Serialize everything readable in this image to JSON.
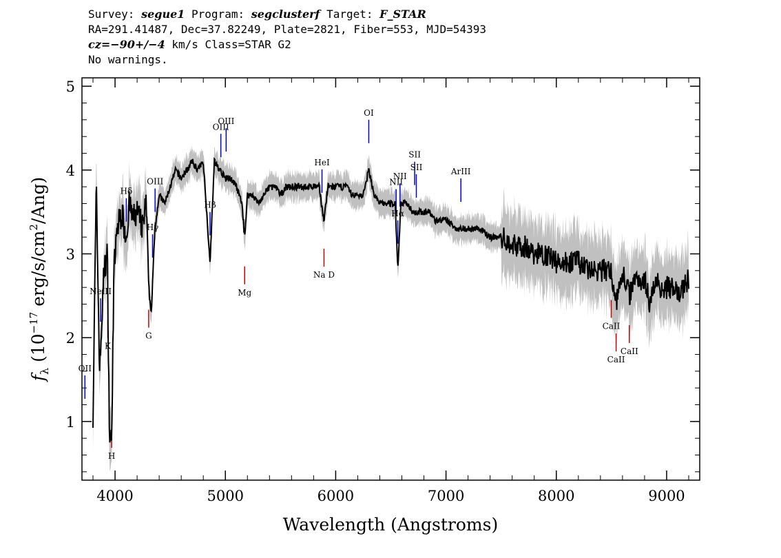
{
  "header": {
    "survey_prefix": "Survey: ",
    "survey": "segue1",
    "program_prefix": " Program: ",
    "program": "segclusterf",
    "target_prefix": " Target: ",
    "target": "F_STAR",
    "line2": "RA=291.41487, Dec=37.82249, Plate=2821, Fiber=553, MJD=54393",
    "cz_value": "cz=−90+/−4",
    "cz_suffix": " km/s Class=STAR G2",
    "line4": "No warnings."
  },
  "chart_data": {
    "type": "line",
    "title": "",
    "xlabel": "Wavelength (Angstroms)",
    "ylabel": "fλ (10^-17 erg/s/cm^2/Ang)",
    "xlim": [
      3700,
      9300
    ],
    "ylim": [
      0.3,
      5.1
    ],
    "x_ticks": [
      4000,
      5000,
      6000,
      7000,
      8000,
      9000
    ],
    "y_ticks": [
      1,
      2,
      3,
      4,
      5
    ],
    "series": [
      {
        "color": "#000000",
        "noise_color": "#c0c0c0",
        "x": [
          3800,
          3830,
          3860,
          3900,
          3930,
          3950,
          3968,
          3990,
          4020,
          4060,
          4101,
          4130,
          4160,
          4200,
          4250,
          4280,
          4310,
          4330,
          4360,
          4400,
          4450,
          4500,
          4550,
          4600,
          4650,
          4700,
          4750,
          4800,
          4861,
          4900,
          4950,
          5000,
          5050,
          5100,
          5150,
          5175,
          5200,
          5250,
          5300,
          5350,
          5400,
          5450,
          5500,
          5550,
          5600,
          5650,
          5700,
          5750,
          5800,
          5850,
          5893,
          5930,
          5980,
          6050,
          6100,
          6150,
          6200,
          6250,
          6300,
          6350,
          6400,
          6450,
          6500,
          6540,
          6563,
          6590,
          6650,
          6700,
          6750,
          6800,
          6850,
          6900,
          6950,
          7000,
          7100,
          7200,
          7300,
          7400,
          7500,
          7600,
          7700,
          7800,
          7900,
          8000,
          8100,
          8200,
          8300,
          8400,
          8498,
          8542,
          8600,
          8662,
          8700,
          8800,
          8850,
          8900,
          8950,
          9000,
          9050,
          9100,
          9150,
          9200
        ],
        "values": [
          1.1,
          3.8,
          1.6,
          2.8,
          3.0,
          0.8,
          0.75,
          2.8,
          3.3,
          3.5,
          3.2,
          3.6,
          3.4,
          3.5,
          3.3,
          3.6,
          2.5,
          2.3,
          3.3,
          3.7,
          3.6,
          3.8,
          4.0,
          3.9,
          4.0,
          4.1,
          4.0,
          4.1,
          2.9,
          4.1,
          4.0,
          3.9,
          3.9,
          3.8,
          3.6,
          3.2,
          3.7,
          3.7,
          3.6,
          3.7,
          3.8,
          3.8,
          3.7,
          3.8,
          3.8,
          3.8,
          3.8,
          3.8,
          3.8,
          3.8,
          3.4,
          3.8,
          3.8,
          3.8,
          3.8,
          3.7,
          3.7,
          3.7,
          4.0,
          3.7,
          3.6,
          3.6,
          3.6,
          3.6,
          2.8,
          3.6,
          3.6,
          3.5,
          3.5,
          3.5,
          3.5,
          3.4,
          3.4,
          3.4,
          3.3,
          3.3,
          3.3,
          3.2,
          3.2,
          3.1,
          3.1,
          3.0,
          3.0,
          2.9,
          2.9,
          2.9,
          2.8,
          2.8,
          2.8,
          2.4,
          2.8,
          2.5,
          2.7,
          2.7,
          2.4,
          2.7,
          2.6,
          2.6,
          2.6,
          2.5,
          2.6,
          2.7
        ]
      }
    ],
    "emission_lines": [
      {
        "label": "OII",
        "wavelength": 3727,
        "color": "#0000cc"
      },
      {
        "label": "NeIII",
        "wavelength": 3869,
        "color": "#0000cc"
      },
      {
        "label": "Hδ",
        "wavelength": 4102,
        "color": "#0000cc"
      },
      {
        "label": "Hγ",
        "wavelength": 4340,
        "color": "#0000cc"
      },
      {
        "label": "OIII",
        "wavelength": 4363,
        "color": "#0000cc"
      },
      {
        "label": "Hβ",
        "wavelength": 4861,
        "color": "#0000cc"
      },
      {
        "label": "OIII",
        "wavelength": 4959,
        "color": "#0000cc"
      },
      {
        "label": "OIII",
        "wavelength": 5007,
        "color": "#0000cc"
      },
      {
        "label": "HeI",
        "wavelength": 5876,
        "color": "#0000cc"
      },
      {
        "label": "OI",
        "wavelength": 6300,
        "color": "#0000cc"
      },
      {
        "label": "NII",
        "wavelength": 6548,
        "color": "#0000cc"
      },
      {
        "label": "Hα",
        "wavelength": 6563,
        "color": "#0000cc"
      },
      {
        "label": "NII",
        "wavelength": 6583,
        "color": "#0000cc"
      },
      {
        "label": "SII",
        "wavelength": 6716,
        "color": "#0000cc"
      },
      {
        "label": "SII",
        "wavelength": 6731,
        "color": "#0000cc"
      },
      {
        "label": "ArIII",
        "wavelength": 7135,
        "color": "#0000cc"
      }
    ],
    "absorption_lines": [
      {
        "label": "K",
        "wavelength": 3934,
        "color": "#cc0000"
      },
      {
        "label": "H",
        "wavelength": 3969,
        "color": "#cc0000"
      },
      {
        "label": "G",
        "wavelength": 4305,
        "color": "#cc0000"
      },
      {
        "label": "Mg",
        "wavelength": 5175,
        "color": "#cc0000"
      },
      {
        "label": "Na D",
        "wavelength": 5894,
        "color": "#cc0000"
      },
      {
        "label": "CaII",
        "wavelength": 8498,
        "color": "#cc0000"
      },
      {
        "label": "CaII",
        "wavelength": 8542,
        "color": "#cc0000"
      },
      {
        "label": "CaII",
        "wavelength": 8662,
        "color": "#cc0000"
      }
    ]
  }
}
